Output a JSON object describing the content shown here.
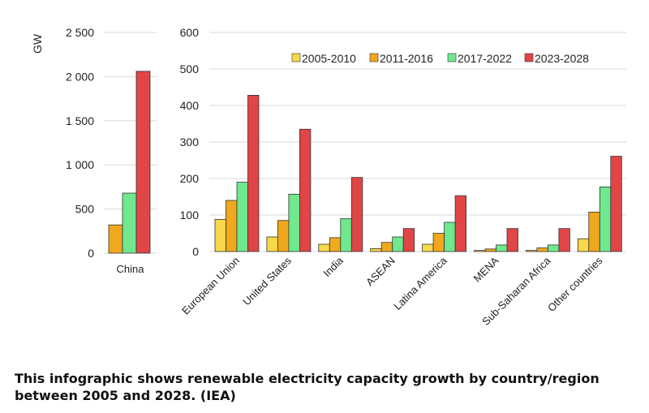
{
  "caption": "This infographic shows renewable electricity capacity growth by country/region between 2005 and 2028. (IEA)",
  "chart_data": [
    {
      "type": "bar",
      "ylabel": "GW",
      "ylim": [
        0,
        2500
      ],
      "yticks": [
        "0",
        "500",
        "1 000",
        "1 500",
        "2 000",
        "2 500"
      ],
      "ytick_values": [
        0,
        500,
        1000,
        1500,
        2000,
        2500
      ],
      "grid": true,
      "categories": [
        "China"
      ],
      "series": [
        {
          "name": "2005-2010",
          "color": "#f7d84b",
          "values": [
            0
          ]
        },
        {
          "name": "2011-2016",
          "color": "#f0a81c",
          "values": [
            320
          ]
        },
        {
          "name": "2017-2022",
          "color": "#6fe88e",
          "values": [
            680
          ]
        },
        {
          "name": "2023-2028",
          "color": "#e14545",
          "values": [
            2060
          ]
        }
      ]
    },
    {
      "type": "bar",
      "ylim": [
        0,
        600
      ],
      "yticks": [
        "0",
        "100",
        "200",
        "300",
        "400",
        "500",
        "600"
      ],
      "ytick_values": [
        0,
        100,
        200,
        300,
        400,
        500,
        600
      ],
      "grid": true,
      "legend_position": "top-right",
      "categories": [
        "European Union",
        "United States",
        "India",
        "ASEAN",
        "Latina America",
        "MENA",
        "Sub-Saharan Africa",
        "Other countries"
      ],
      "series": [
        {
          "name": "2005-2010",
          "color": "#f7d84b",
          "values": [
            88,
            40,
            20,
            8,
            20,
            3,
            3,
            35
          ]
        },
        {
          "name": "2011-2016",
          "color": "#f0a81c",
          "values": [
            140,
            85,
            38,
            25,
            50,
            7,
            10,
            108
          ]
        },
        {
          "name": "2017-2022",
          "color": "#6fe88e",
          "values": [
            190,
            157,
            90,
            40,
            80,
            18,
            18,
            177
          ]
        },
        {
          "name": "2023-2028",
          "color": "#e14545",
          "values": [
            428,
            335,
            203,
            63,
            153,
            63,
            63,
            261
          ]
        }
      ]
    }
  ]
}
